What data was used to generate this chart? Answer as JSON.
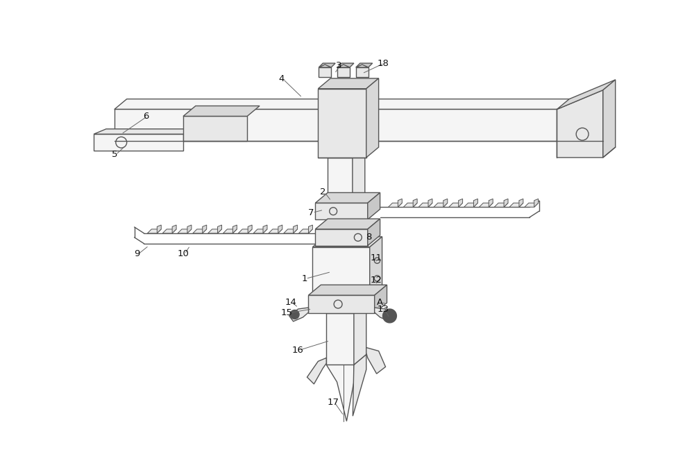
{
  "figure_width": 10.0,
  "figure_height": 6.64,
  "dpi": 100,
  "bg_color": "#ffffff",
  "line_color": "#555555",
  "line_width": 1.0,
  "fill_light": "#f5f5f5",
  "fill_mid": "#e8e8e8",
  "fill_dark": "#d8d8d8",
  "fill_darker": "#c8c8c8"
}
